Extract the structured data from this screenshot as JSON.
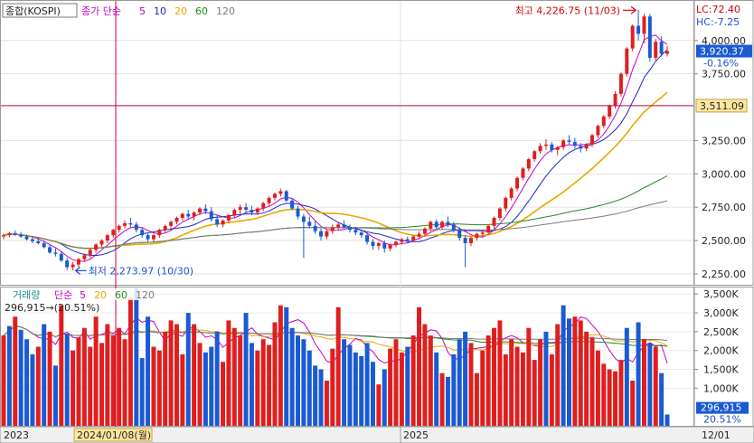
{
  "chart_data": {
    "type": "candlestick",
    "price_panel": {
      "legend": {
        "index_name": "종합(KOSPI)",
        "ma_title": "종가 단순",
        "periods": [
          "5",
          "10",
          "20",
          "60",
          "120"
        ],
        "period_colors": [
          "#c800c8",
          "#1a28c8",
          "#e8a800",
          "#1e8c1e",
          "#7a7a7a"
        ]
      },
      "corner": {
        "lc": "LC:72.40",
        "hc": "HC:-7.25"
      },
      "y_ticks": [
        "4,000.00",
        "3,750.00",
        "3,250.00",
        "3,000.00",
        "2,750.00",
        "2,500.00",
        "2,250.00"
      ],
      "y_tick_values": [
        4000,
        3750,
        3250,
        3000,
        2750,
        2500,
        2250
      ],
      "y_range": [
        2175,
        4290
      ],
      "last_price": {
        "label": "3,920.37",
        "value": 3920.37,
        "change": "-0.16%"
      },
      "crosshair_price": {
        "label": "3,511.09",
        "value": 3511.09
      },
      "max_annotation": {
        "text": "최고 4,226.75 (11/03)",
        "value": 4226.75
      },
      "min_annotation": {
        "text": "최저 2,273.97 (10/30)",
        "value": 2273.97
      }
    },
    "volume_panel": {
      "legend": {
        "title": "거래량",
        "ma_title": "단순",
        "periods": [
          "5",
          "20",
          "60",
          "120"
        ]
      },
      "readout": "296,915→(20.51%)",
      "y_ticks": [
        "3,500K",
        "3,000K",
        "2,500K",
        "2,000K",
        "1,500K",
        "1,000K"
      ],
      "y_tick_values": [
        3500,
        3000,
        2500,
        2000,
        1500,
        1000
      ],
      "y_range": [
        0,
        3650
      ],
      "last_volume": {
        "label": "296,915",
        "value": 296.915,
        "pct": "20.51%"
      }
    },
    "x_axis": {
      "labels": [
        "2023",
        "2024/01/08(월)",
        "2025",
        "12/01"
      ]
    },
    "ohlc": [
      [
        2530,
        2550,
        2510,
        2540
      ],
      [
        2540,
        2565,
        2525,
        2555
      ],
      [
        2555,
        2575,
        2535,
        2545
      ],
      [
        2545,
        2565,
        2520,
        2530
      ],
      [
        2530,
        2545,
        2500,
        2510
      ],
      [
        2510,
        2530,
        2480,
        2495
      ],
      [
        2495,
        2520,
        2470,
        2480
      ],
      [
        2480,
        2500,
        2440,
        2450
      ],
      [
        2450,
        2475,
        2400,
        2410
      ],
      [
        2410,
        2440,
        2380,
        2400
      ],
      [
        2400,
        2420,
        2340,
        2350
      ],
      [
        2350,
        2370,
        2280,
        2300
      ],
      [
        2300,
        2340,
        2274,
        2320
      ],
      [
        2320,
        2370,
        2300,
        2360
      ],
      [
        2360,
        2400,
        2340,
        2390
      ],
      [
        2390,
        2440,
        2370,
        2430
      ],
      [
        2430,
        2480,
        2410,
        2470
      ],
      [
        2470,
        2510,
        2450,
        2500
      ],
      [
        2500,
        2550,
        2480,
        2540
      ],
      [
        2540,
        2590,
        2520,
        2580
      ],
      [
        2580,
        2620,
        2560,
        2610
      ],
      [
        2610,
        2650,
        2590,
        2630
      ],
      [
        2630,
        2670,
        2600,
        2620
      ],
      [
        2620,
        2640,
        2560,
        2580
      ],
      [
        2580,
        2600,
        2520,
        2540
      ],
      [
        2540,
        2560,
        2490,
        2510
      ],
      [
        2510,
        2550,
        2490,
        2540
      ],
      [
        2540,
        2590,
        2520,
        2580
      ],
      [
        2580,
        2620,
        2560,
        2610
      ],
      [
        2610,
        2650,
        2590,
        2640
      ],
      [
        2640,
        2680,
        2620,
        2670
      ],
      [
        2670,
        2710,
        2650,
        2700
      ],
      [
        2700,
        2730,
        2660,
        2680
      ],
      [
        2680,
        2720,
        2650,
        2710
      ],
      [
        2710,
        2750,
        2690,
        2740
      ],
      [
        2740,
        2770,
        2700,
        2720
      ],
      [
        2720,
        2750,
        2640,
        2660
      ],
      [
        2660,
        2690,
        2600,
        2620
      ],
      [
        2620,
        2660,
        2600,
        2650
      ],
      [
        2650,
        2700,
        2630,
        2690
      ],
      [
        2690,
        2740,
        2670,
        2730
      ],
      [
        2730,
        2770,
        2700,
        2750
      ],
      [
        2750,
        2780,
        2710,
        2730
      ],
      [
        2730,
        2760,
        2690,
        2710
      ],
      [
        2710,
        2750,
        2690,
        2740
      ],
      [
        2740,
        2790,
        2720,
        2780
      ],
      [
        2780,
        2830,
        2760,
        2820
      ],
      [
        2820,
        2860,
        2800,
        2850
      ],
      [
        2850,
        2890,
        2830,
        2870
      ],
      [
        2870,
        2880,
        2790,
        2800
      ],
      [
        2800,
        2820,
        2730,
        2740
      ],
      [
        2740,
        2760,
        2660,
        2680
      ],
      [
        2680,
        2700,
        2370,
        2640
      ],
      [
        2640,
        2680,
        2590,
        2610
      ],
      [
        2610,
        2650,
        2550,
        2570
      ],
      [
        2570,
        2590,
        2500,
        2530
      ],
      [
        2530,
        2580,
        2510,
        2570
      ],
      [
        2570,
        2620,
        2550,
        2600
      ],
      [
        2600,
        2640,
        2580,
        2620
      ],
      [
        2620,
        2650,
        2590,
        2600
      ],
      [
        2600,
        2620,
        2560,
        2580
      ],
      [
        2580,
        2600,
        2540,
        2560
      ],
      [
        2560,
        2580,
        2520,
        2540
      ],
      [
        2540,
        2560,
        2470,
        2490
      ],
      [
        2490,
        2510,
        2430,
        2460
      ],
      [
        2460,
        2490,
        2430,
        2480
      ],
      [
        2480,
        2500,
        2410,
        2440
      ],
      [
        2440,
        2480,
        2420,
        2470
      ],
      [
        2470,
        2500,
        2450,
        2490
      ],
      [
        2490,
        2520,
        2470,
        2510
      ],
      [
        2510,
        2530,
        2480,
        2500
      ],
      [
        2500,
        2540,
        2490,
        2530
      ],
      [
        2530,
        2570,
        2510,
        2550
      ],
      [
        2550,
        2600,
        2530,
        2590
      ],
      [
        2590,
        2650,
        2570,
        2640
      ],
      [
        2640,
        2660,
        2580,
        2600
      ],
      [
        2600,
        2650,
        2580,
        2640
      ],
      [
        2640,
        2680,
        2600,
        2620
      ],
      [
        2620,
        2640,
        2560,
        2580
      ],
      [
        2580,
        2600,
        2500,
        2520
      ],
      [
        2520,
        2540,
        2300,
        2480
      ],
      [
        2480,
        2530,
        2460,
        2520
      ],
      [
        2520,
        2560,
        2500,
        2550
      ],
      [
        2550,
        2580,
        2530,
        2560
      ],
      [
        2560,
        2620,
        2540,
        2610
      ],
      [
        2610,
        2680,
        2590,
        2670
      ],
      [
        2670,
        2750,
        2650,
        2740
      ],
      [
        2740,
        2830,
        2720,
        2820
      ],
      [
        2820,
        2900,
        2800,
        2890
      ],
      [
        2890,
        2980,
        2870,
        2970
      ],
      [
        2970,
        3050,
        2950,
        3040
      ],
      [
        3040,
        3120,
        3020,
        3110
      ],
      [
        3110,
        3180,
        3090,
        3170
      ],
      [
        3170,
        3230,
        3150,
        3210
      ],
      [
        3210,
        3260,
        3180,
        3220
      ],
      [
        3220,
        3240,
        3160,
        3180
      ],
      [
        3180,
        3210,
        3140,
        3200
      ],
      [
        3200,
        3260,
        3180,
        3250
      ],
      [
        3250,
        3290,
        3220,
        3240
      ],
      [
        3240,
        3270,
        3190,
        3210
      ],
      [
        3210,
        3230,
        3160,
        3190
      ],
      [
        3190,
        3230,
        3170,
        3220
      ],
      [
        3220,
        3300,
        3200,
        3290
      ],
      [
        3290,
        3370,
        3270,
        3360
      ],
      [
        3360,
        3440,
        3340,
        3430
      ],
      [
        3430,
        3520,
        3410,
        3510
      ],
      [
        3510,
        3620,
        3490,
        3600
      ],
      [
        3600,
        3760,
        3580,
        3750
      ],
      [
        3750,
        3950,
        3730,
        3940
      ],
      [
        3940,
        4120,
        3920,
        4110
      ],
      [
        4110,
        4227,
        4000,
        4050
      ],
      [
        4050,
        4200,
        3980,
        4180
      ],
      [
        4180,
        4200,
        3840,
        3870
      ],
      [
        3870,
        4010,
        3850,
        3990
      ],
      [
        3990,
        4030,
        3880,
        3900
      ],
      [
        3900,
        3960,
        3880,
        3920
      ]
    ],
    "volume": [
      2400,
      2650,
      2900,
      2550,
      2300,
      1900,
      2100,
      2700,
      2500,
      1600,
      3200,
      2450,
      2000,
      2350,
      2600,
      2100,
      2900,
      2200,
      2700,
      2400,
      2600,
      2300,
      3400,
      3650,
      1800,
      2900,
      2100,
      2000,
      2500,
      2800,
      2700,
      1900,
      3000,
      2700,
      2200,
      1950,
      2100,
      2500,
      1700,
      2800,
      2600,
      2400,
      3000,
      2200,
      2000,
      2300,
      2150,
      2750,
      3200,
      3150,
      2600,
      2400,
      2300,
      2000,
      1600,
      1500,
      1200,
      2050,
      3150,
      2300,
      2150,
      1950,
      1850,
      2200,
      1700,
      1100,
      1500,
      2050,
      2300,
      1950,
      2100,
      2400,
      3150,
      2700,
      2400,
      1950,
      1400,
      1300,
      1900,
      2300,
      2500,
      2200,
      1400,
      2000,
      2400,
      2600,
      2800,
      1900,
      2300,
      2100,
      1950,
      2600,
      1750,
      2300,
      2500,
      1900,
      2700,
      3200,
      2850,
      2900,
      2800,
      2500,
      2350,
      2000,
      1650,
      1500,
      1450,
      1750,
      2600,
      1200,
      2750,
      2300,
      2200,
      2100,
      1400,
      300
    ],
    "volume_up": [
      true,
      false,
      true,
      false,
      false,
      false,
      true,
      false,
      true,
      false,
      true,
      false,
      true,
      true,
      true,
      true,
      true,
      true,
      true,
      true,
      true,
      true,
      true,
      false,
      false,
      false,
      true,
      true,
      true,
      true,
      true,
      true,
      false,
      true,
      true,
      false,
      false,
      false,
      true,
      true,
      true,
      true,
      false,
      false,
      true,
      true,
      true,
      true,
      true,
      false,
      false,
      false,
      false,
      false,
      false,
      false,
      true,
      true,
      true,
      false,
      false,
      false,
      false,
      false,
      false,
      true,
      false,
      true,
      true,
      true,
      false,
      true,
      true,
      true,
      true,
      false,
      true,
      false,
      false,
      false,
      false,
      true,
      true,
      true,
      true,
      true,
      true,
      true,
      true,
      true,
      true,
      true,
      true,
      true,
      false,
      true,
      true,
      false,
      false,
      true,
      true,
      true,
      true,
      true,
      true,
      true,
      true,
      true,
      false,
      true,
      false,
      true,
      false,
      true,
      false,
      false
    ]
  }
}
